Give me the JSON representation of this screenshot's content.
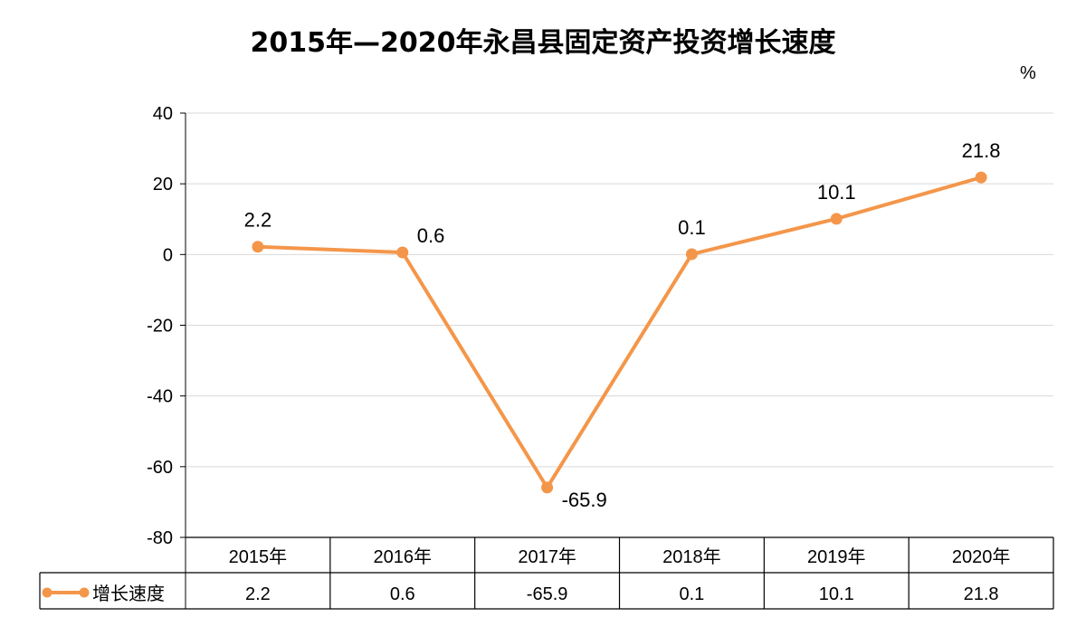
{
  "chart_data": {
    "type": "line",
    "title": "2015年—2020年永昌县固定资产投资增长速度",
    "unit": "%",
    "categories": [
      "2015年",
      "2016年",
      "2017年",
      "2018年",
      "2019年",
      "2020年"
    ],
    "series": [
      {
        "name": "增长速度",
        "values": [
          2.2,
          0.6,
          -65.9,
          0.1,
          10.1,
          21.8
        ]
      }
    ],
    "ylim": [
      -80,
      40
    ],
    "yticks": [
      40,
      20,
      0,
      -20,
      -40,
      -60,
      -80
    ],
    "grid": true,
    "legend": "data-table-left",
    "data_table": true,
    "line_color": "#F4964A"
  }
}
